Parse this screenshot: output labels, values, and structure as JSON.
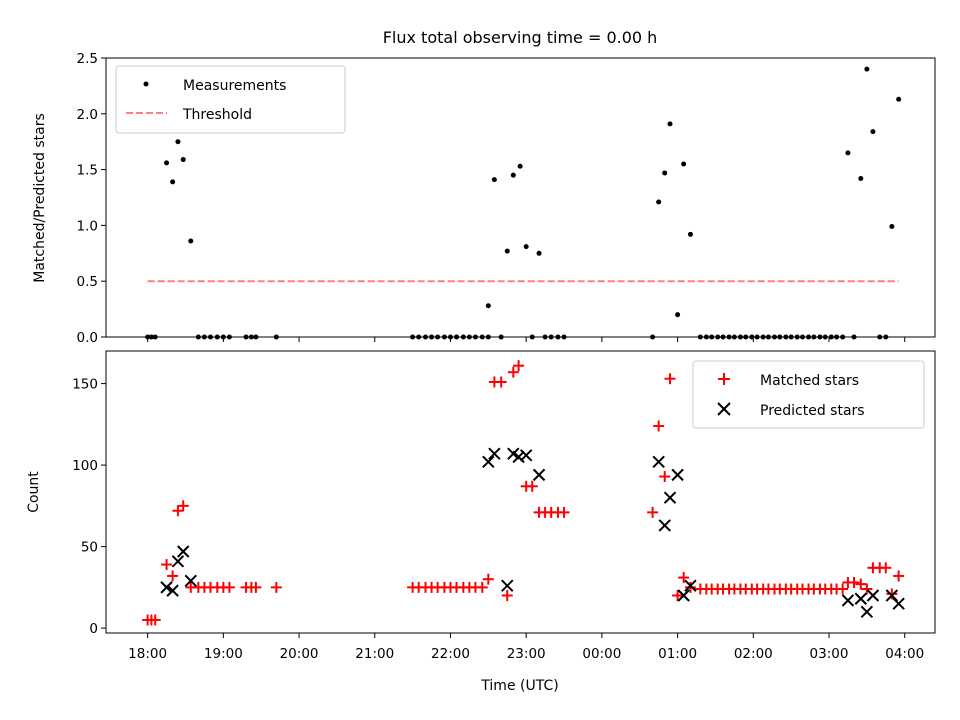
{
  "chart_data": [
    {
      "type": "scatter",
      "title": "Flux total observing time = 0.00 h",
      "xlabel": "",
      "ylabel": "Matched/Predicted stars",
      "x_unit": "hours since 18:00 UTC",
      "xlim": [
        -0.55,
        10.4
      ],
      "ylim": [
        0,
        2.5
      ],
      "yticks": [
        "0.0",
        "0.5",
        "1.0",
        "1.5",
        "2.0",
        "2.5"
      ],
      "legend_position": "top-left",
      "series": [
        {
          "name": "Measurements",
          "color": "#000000",
          "marker": "dot",
          "points": [
            [
              0.0,
              0
            ],
            [
              0.05,
              0
            ],
            [
              0.1,
              0
            ],
            [
              0.25,
              1.56
            ],
            [
              0.33,
              1.39
            ],
            [
              0.4,
              1.75
            ],
            [
              0.47,
              1.59
            ],
            [
              0.57,
              0.86
            ],
            [
              0.67,
              0
            ],
            [
              0.75,
              0
            ],
            [
              0.83,
              0
            ],
            [
              0.92,
              0
            ],
            [
              1.0,
              0
            ],
            [
              1.08,
              0
            ],
            [
              1.3,
              0
            ],
            [
              1.37,
              0
            ],
            [
              1.43,
              0
            ],
            [
              1.7,
              0
            ],
            [
              3.5,
              0
            ],
            [
              3.58,
              0
            ],
            [
              3.67,
              0
            ],
            [
              3.75,
              0
            ],
            [
              3.83,
              0
            ],
            [
              3.92,
              0
            ],
            [
              4.0,
              0
            ],
            [
              4.08,
              0
            ],
            [
              4.17,
              0
            ],
            [
              4.25,
              0
            ],
            [
              4.33,
              0
            ],
            [
              4.42,
              0
            ],
            [
              4.5,
              0
            ],
            [
              4.5,
              0.28
            ],
            [
              4.58,
              1.41
            ],
            [
              4.67,
              0
            ],
            [
              4.75,
              0.77
            ],
            [
              4.83,
              1.45
            ],
            [
              4.92,
              1.53
            ],
            [
              5.0,
              0.81
            ],
            [
              5.08,
              0
            ],
            [
              5.17,
              0.75
            ],
            [
              5.25,
              0
            ],
            [
              5.33,
              0
            ],
            [
              5.42,
              0
            ],
            [
              5.5,
              0
            ],
            [
              6.67,
              0
            ],
            [
              6.75,
              1.21
            ],
            [
              6.83,
              1.47
            ],
            [
              6.9,
              1.91
            ],
            [
              7.0,
              0.2
            ],
            [
              7.08,
              1.55
            ],
            [
              7.17,
              0.92
            ],
            [
              7.3,
              0
            ],
            [
              7.38,
              0
            ],
            [
              7.45,
              0
            ],
            [
              7.53,
              0
            ],
            [
              7.6,
              0
            ],
            [
              7.68,
              0
            ],
            [
              7.75,
              0
            ],
            [
              7.83,
              0
            ],
            [
              7.9,
              0
            ],
            [
              7.98,
              0
            ],
            [
              8.05,
              0
            ],
            [
              8.13,
              0
            ],
            [
              8.2,
              0
            ],
            [
              8.28,
              0
            ],
            [
              8.35,
              0
            ],
            [
              8.43,
              0
            ],
            [
              8.5,
              0
            ],
            [
              8.58,
              0
            ],
            [
              8.65,
              0
            ],
            [
              8.73,
              0
            ],
            [
              8.8,
              0
            ],
            [
              8.88,
              0
            ],
            [
              8.95,
              0
            ],
            [
              9.03,
              0
            ],
            [
              9.1,
              0
            ],
            [
              9.18,
              0
            ],
            [
              9.25,
              1.65
            ],
            [
              9.33,
              0
            ],
            [
              9.42,
              1.42
            ],
            [
              9.5,
              2.4
            ],
            [
              9.58,
              1.84
            ],
            [
              9.67,
              0
            ],
            [
              9.75,
              0
            ],
            [
              9.83,
              0.99
            ],
            [
              9.92,
              2.13
            ]
          ]
        },
        {
          "name": "Threshold",
          "color": "#ff7f7f",
          "style": "dashed",
          "x": [
            0.0,
            9.92
          ],
          "y": [
            0.5,
            0.5
          ]
        }
      ]
    },
    {
      "type": "scatter",
      "title": "",
      "xlabel": "Time (UTC)",
      "ylabel": "Count",
      "x_unit": "hours since 18:00 UTC",
      "xlim": [
        -0.55,
        10.4
      ],
      "ylim": [
        -3,
        170
      ],
      "yticks": [
        "0",
        "50",
        "100",
        "150"
      ],
      "categories": [
        "18:00",
        "19:00",
        "20:00",
        "21:00",
        "22:00",
        "23:00",
        "00:00",
        "01:00",
        "02:00",
        "03:00",
        "04:00"
      ],
      "legend_position": "top-right",
      "series": [
        {
          "name": "Matched stars",
          "color": "#ff0000",
          "marker": "plus",
          "points": [
            [
              0.0,
              5
            ],
            [
              0.05,
              5
            ],
            [
              0.1,
              5
            ],
            [
              0.25,
              39
            ],
            [
              0.33,
              32
            ],
            [
              0.4,
              72
            ],
            [
              0.47,
              75
            ],
            [
              0.57,
              25
            ],
            [
              0.67,
              25
            ],
            [
              0.75,
              25
            ],
            [
              0.83,
              25
            ],
            [
              0.92,
              25
            ],
            [
              1.0,
              25
            ],
            [
              1.08,
              25
            ],
            [
              1.3,
              25
            ],
            [
              1.37,
              25
            ],
            [
              1.43,
              25
            ],
            [
              1.7,
              25
            ],
            [
              3.5,
              25
            ],
            [
              3.58,
              25
            ],
            [
              3.67,
              25
            ],
            [
              3.75,
              25
            ],
            [
              3.83,
              25
            ],
            [
              3.92,
              25
            ],
            [
              4.0,
              25
            ],
            [
              4.08,
              25
            ],
            [
              4.17,
              25
            ],
            [
              4.25,
              25
            ],
            [
              4.33,
              25
            ],
            [
              4.42,
              25
            ],
            [
              4.5,
              30
            ],
            [
              4.58,
              151
            ],
            [
              4.67,
              151
            ],
            [
              4.75,
              20
            ],
            [
              4.83,
              157
            ],
            [
              4.9,
              161
            ],
            [
              5.0,
              87
            ],
            [
              5.08,
              87
            ],
            [
              5.17,
              71
            ],
            [
              5.25,
              71
            ],
            [
              5.33,
              71
            ],
            [
              5.42,
              71
            ],
            [
              5.5,
              71
            ],
            [
              6.67,
              71
            ],
            [
              6.75,
              124
            ],
            [
              6.83,
              93
            ],
            [
              6.9,
              153
            ],
            [
              7.0,
              20
            ],
            [
              7.08,
              31
            ],
            [
              7.17,
              25
            ],
            [
              7.3,
              24
            ],
            [
              7.38,
              24
            ],
            [
              7.45,
              24
            ],
            [
              7.53,
              24
            ],
            [
              7.6,
              24
            ],
            [
              7.68,
              24
            ],
            [
              7.75,
              24
            ],
            [
              7.83,
              24
            ],
            [
              7.9,
              24
            ],
            [
              7.98,
              24
            ],
            [
              8.05,
              24
            ],
            [
              8.13,
              24
            ],
            [
              8.2,
              24
            ],
            [
              8.28,
              24
            ],
            [
              8.35,
              24
            ],
            [
              8.43,
              24
            ],
            [
              8.5,
              24
            ],
            [
              8.58,
              24
            ],
            [
              8.65,
              24
            ],
            [
              8.73,
              24
            ],
            [
              8.8,
              24
            ],
            [
              8.88,
              24
            ],
            [
              8.95,
              24
            ],
            [
              9.03,
              24
            ],
            [
              9.1,
              24
            ],
            [
              9.18,
              24
            ],
            [
              9.25,
              28
            ],
            [
              9.33,
              28
            ],
            [
              9.42,
              27
            ],
            [
              9.5,
              24
            ],
            [
              9.58,
              37
            ],
            [
              9.67,
              37
            ],
            [
              9.75,
              37
            ],
            [
              9.83,
              21
            ],
            [
              9.92,
              32
            ]
          ]
        },
        {
          "name": "Predicted stars",
          "color": "#000000",
          "marker": "x",
          "points": [
            [
              0.25,
              25
            ],
            [
              0.33,
              23
            ],
            [
              0.4,
              41
            ],
            [
              0.47,
              47
            ],
            [
              0.57,
              29
            ],
            [
              4.5,
              102
            ],
            [
              4.58,
              107
            ],
            [
              4.75,
              26
            ],
            [
              4.83,
              107
            ],
            [
              4.9,
              105
            ],
            [
              5.0,
              106
            ],
            [
              5.17,
              94
            ],
            [
              6.75,
              102
            ],
            [
              6.83,
              63
            ],
            [
              6.9,
              80
            ],
            [
              7.0,
              94
            ],
            [
              7.08,
              20
            ],
            [
              7.17,
              26
            ],
            [
              9.25,
              17
            ],
            [
              9.42,
              18
            ],
            [
              9.5,
              10
            ],
            [
              9.58,
              20
            ],
            [
              9.83,
              20
            ],
            [
              9.92,
              15
            ]
          ]
        }
      ]
    }
  ]
}
